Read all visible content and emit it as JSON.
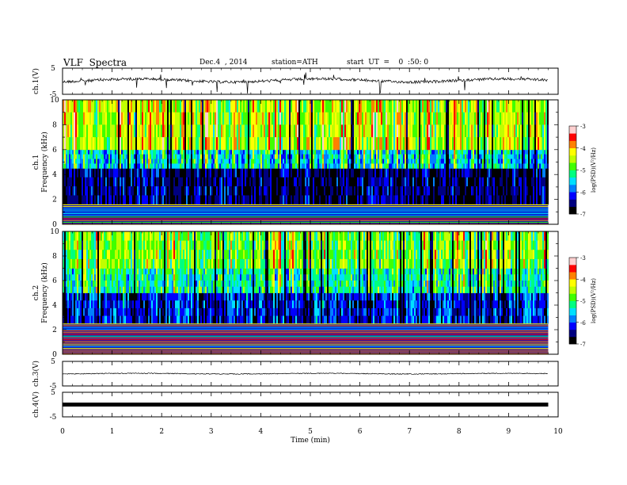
{
  "header": {
    "title": "VLF  Spectra",
    "date": "Dec.4  , 2014",
    "station": "station=ATH",
    "start": "start  UT  =    0  :50: 0"
  },
  "chart_data": {
    "type": "heatmap",
    "x_axis": {
      "label": "Time  (min)",
      "range": [
        0,
        10
      ],
      "ticks": [
        "0",
        "1",
        "2",
        "3",
        "4",
        "5",
        "6",
        "7",
        "8",
        "9",
        "10"
      ],
      "data_end": 9.8
    },
    "panels": [
      {
        "id": "ch1-wave",
        "type": "line",
        "ylabel": "ch.1(V)",
        "ylim": [
          -5,
          5
        ],
        "ticks": [
          "5",
          "-5"
        ],
        "baseline": 0.3,
        "noise": "strong-spikes"
      },
      {
        "id": "ch1-spec",
        "type": "heatmap",
        "ylabel": "ch.1\nFrequency  (kHz)",
        "ylim": [
          0,
          10
        ],
        "ticks": [
          "0",
          "2",
          "4",
          "6",
          "8",
          "10"
        ],
        "colorbar": {
          "label": "log(PSD)(V²/Hz)",
          "ticks": [
            "-3",
            "-4",
            "-5",
            "-6",
            "-7"
          ],
          "range": [
            -7,
            -3
          ]
        },
        "bands_kHz": [
          {
            "from": 0,
            "to": 1.6,
            "level": "horizontal-lines"
          },
          {
            "from": 1.6,
            "to": 4.5,
            "level": -6.6
          },
          {
            "from": 4.5,
            "to": 6,
            "level": -5.5
          },
          {
            "from": 6,
            "to": 10,
            "level": -4.6
          }
        ]
      },
      {
        "id": "ch2-spec",
        "type": "heatmap",
        "ylabel": "ch.2\nFrequency  (kHz)",
        "ylim": [
          0,
          10
        ],
        "ticks": [
          "0",
          "2",
          "4",
          "6",
          "8",
          "10"
        ],
        "colorbar": {
          "label": "log(PSD)(V²/Hz)",
          "ticks": [
            "-3",
            "-4",
            "-5",
            "-6",
            "-7"
          ],
          "range": [
            -7,
            -3
          ]
        },
        "bands_kHz": [
          {
            "from": 0,
            "to": 2.5,
            "level": "horizontal-lines"
          },
          {
            "from": 2.5,
            "to": 5,
            "level": -6.2
          },
          {
            "from": 5,
            "to": 7,
            "level": -5.3
          },
          {
            "from": 7,
            "to": 10,
            "level": -4.8
          }
        ]
      },
      {
        "id": "ch3-wave",
        "type": "line",
        "ylabel": "ch.3(V)",
        "ylim": [
          -5,
          5
        ],
        "ticks": [
          "5",
          "-5"
        ],
        "baseline": 0,
        "noise": "small"
      },
      {
        "id": "ch4-wave",
        "type": "line",
        "ylabel": "ch.4(V)",
        "ylim": [
          -5,
          5
        ],
        "ticks": [
          "5",
          "-5"
        ],
        "baseline": 0,
        "noise": "thick-flat"
      }
    ],
    "colormap": [
      "#000000",
      "#000080",
      "#0000ff",
      "#0080ff",
      "#00e0ff",
      "#00ff80",
      "#40ff00",
      "#c0ff00",
      "#ffff00",
      "#ff8000",
      "#ff0000",
      "#ffd0d0"
    ]
  }
}
